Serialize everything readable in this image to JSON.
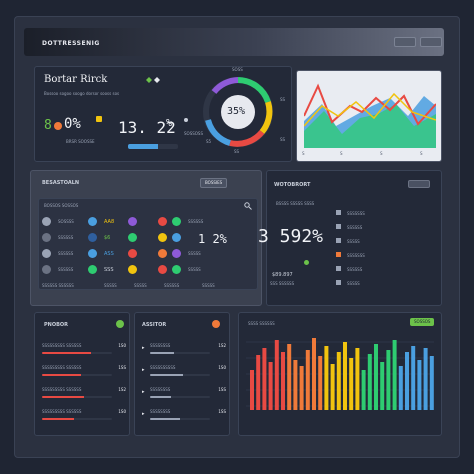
{
  "window": {
    "title": "DOTTRESSENIG"
  },
  "top_left": {
    "title": "Bortar Rirck",
    "subtitle": "Bossoo  sogoo  soogo  dorsor  sooss  sos",
    "stat1_prefix": "8",
    "stat1_value": "0%",
    "stat1_caption": "BRSR SOOSSE",
    "stat2_value": "13. 22",
    "stat2_suffix": "%",
    "bullet_text": "SOSSOSS"
  },
  "gauge": {
    "value": "35%",
    "label_top": "SOSS",
    "label_bl": "S5",
    "label_bottom": "SS",
    "label_right": "SS",
    "label_r2": "SS",
    "progress": 0.72
  },
  "line_chart": {
    "labels": [
      "S",
      "S",
      "S",
      "S"
    ],
    "colors": [
      "#e84a43",
      "#f1c40f",
      "#2ecc71",
      "#4a9fe0"
    ]
  },
  "table_panel": {
    "title": "BESASTOALN",
    "button": "BOSSIES",
    "header": "BOSSOS  SOSSOS",
    "rows": [
      {
        "label": "SOSSSS",
        "v1": "AA8",
        "v2": "SSSSSS"
      },
      {
        "label": "SSSSSS",
        "v1": "$6",
        "v2": "1 2%"
      },
      {
        "label": "SSSSSS",
        "v1": "ASS",
        "v2": "SSSSS"
      },
      {
        "label": "SSSSSS",
        "v1": "SSS",
        "v2": "SSSSS"
      }
    ],
    "footer": [
      "SSSSSS SSSSSS",
      "SSSSS",
      "SSSSS",
      "SSSSSS",
      "SSSSS"
    ],
    "big_value": "1 2%"
  },
  "kpi_panel": {
    "title": "WOTOBRORT",
    "header": "BSSSS  SSSSS  SSSS",
    "value": "3 592%",
    "sub1": "$89.897",
    "sub2": "SSS SSSSSS",
    "list": [
      "SSSSSSS",
      "SSSSSS",
      "SSSSS",
      "SSSSSSS",
      "SSSSSS",
      "SSSSS"
    ]
  },
  "list_a": {
    "title": "PNOBOR",
    "rows": [
      {
        "label": "SSSSSSSSS SSSSSS",
        "value": "1S0",
        "fill": 0.7,
        "color": "#e84a43"
      },
      {
        "label": "SSSSSSSSS SSSSSS",
        "value": "1SS",
        "fill": 0.55,
        "color": "#e84a43"
      },
      {
        "label": "SSSSSSSSS SSSSSS",
        "value": "1S2",
        "fill": 0.6,
        "color": "#e84a43"
      },
      {
        "label": "SSSSSSSSS SSSSSS",
        "value": "1S0",
        "fill": 0.45,
        "color": "#e84a43"
      }
    ]
  },
  "list_b": {
    "title": "ASSITOR",
    "rows": [
      {
        "label": "SSSSSSSS",
        "value": "1S2",
        "fill": 0.4
      },
      {
        "label": "SSSSSSSSSS",
        "value": "1S0",
        "fill": 0.55
      },
      {
        "label": "SSSSSSSS",
        "value": "1SS",
        "fill": 0.35
      },
      {
        "label": "SSSSSSSS",
        "value": "1SS",
        "fill": 0.5
      }
    ]
  },
  "bar_chart": {
    "title": "SSSS SSSSSS",
    "button": "SOSSOS",
    "colors": [
      "#e84a43",
      "#f07a3a",
      "#f1c40f",
      "#2ecc71",
      "#4a9fe0"
    ]
  },
  "colors": {
    "accent_green": "#6cc24a",
    "accent_orange": "#f07a3a"
  }
}
